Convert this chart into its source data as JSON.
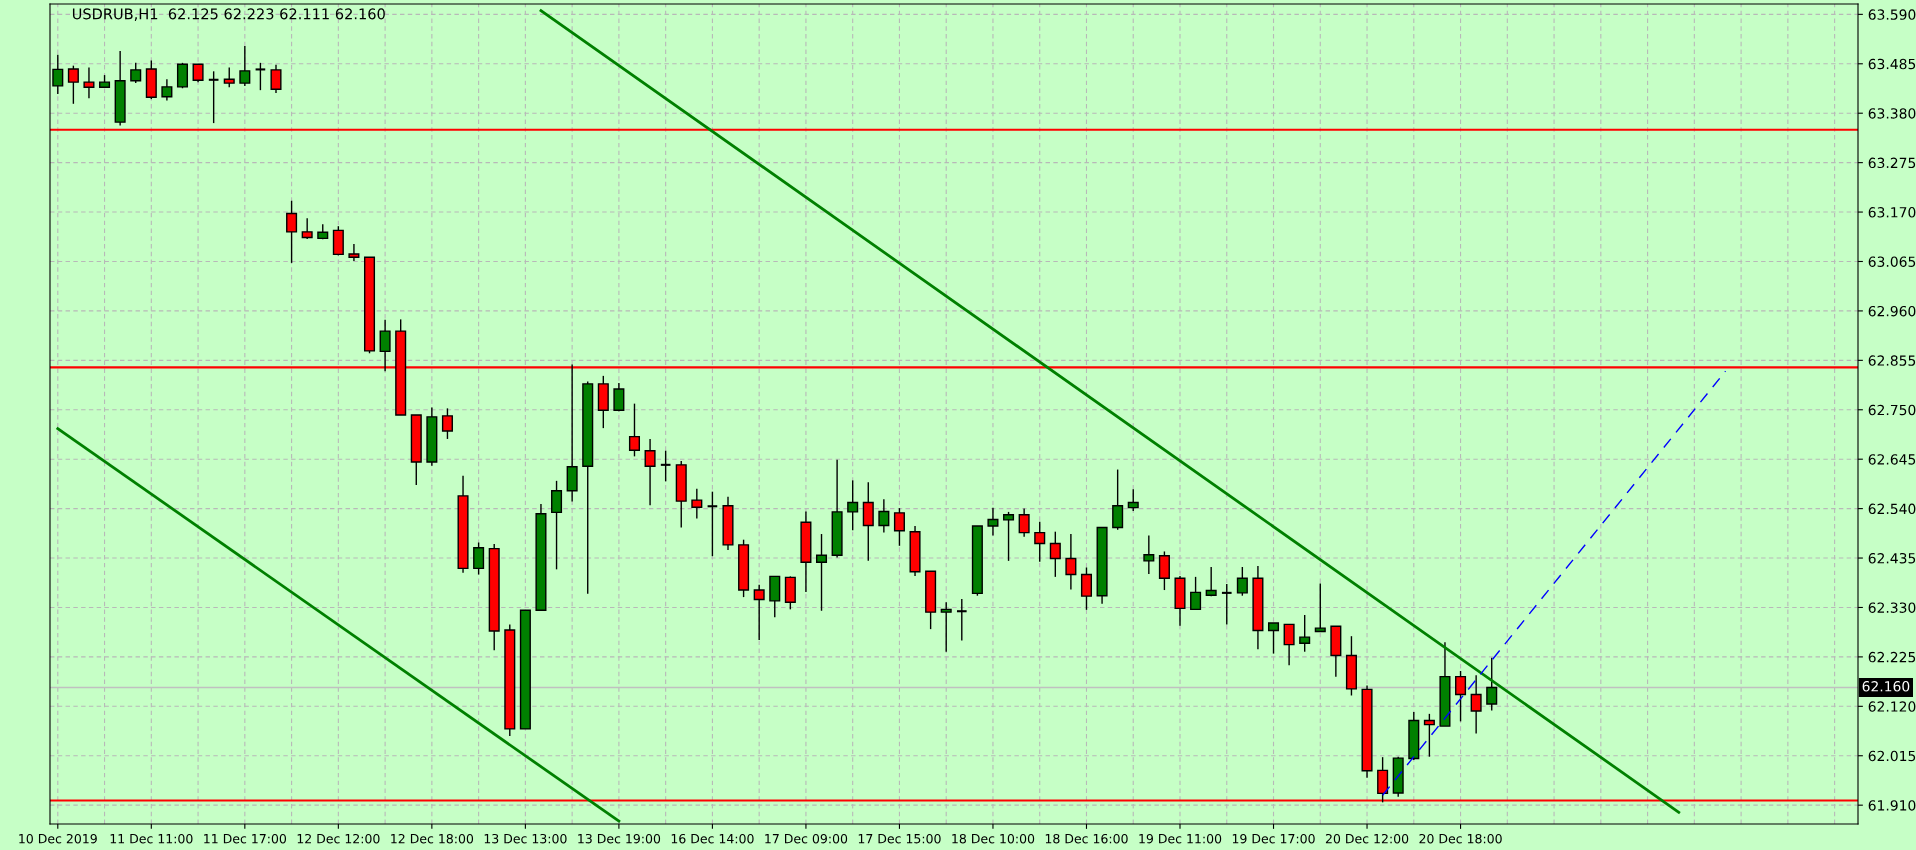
{
  "chart_data": {
    "type": "candlestick",
    "title": "USDRUB,H1  62.125 62.223 62.111 62.160",
    "categories": [
      "10 Dec 2019",
      null,
      null,
      null,
      null,
      null,
      "11 Dec 11:00",
      null,
      null,
      null,
      null,
      null,
      "11 Dec 17:00",
      null,
      null,
      null,
      null,
      null,
      "12 Dec 12:00",
      null,
      null,
      null,
      null,
      null,
      "12 Dec 18:00",
      null,
      null,
      null,
      null,
      null,
      "13 Dec 13:00",
      null,
      null,
      null,
      null,
      null,
      "13 Dec 19:00",
      null,
      null,
      null,
      null,
      null,
      "16 Dec 14:00",
      null,
      null,
      null,
      null,
      null,
      "17 Dec 09:00",
      null,
      null,
      null,
      null,
      null,
      "17 Dec 15:00",
      null,
      null,
      null,
      null,
      null,
      "18 Dec 10:00",
      null,
      null,
      null,
      null,
      null,
      "18 Dec 16:00",
      null,
      null,
      null,
      null,
      null,
      "19 Dec 11:00",
      null,
      null,
      null,
      null,
      null,
      "19 Dec 17:00",
      null,
      null,
      null,
      null,
      null,
      "20 Dec 12:00",
      null,
      null,
      null,
      null,
      null,
      "20 Dec 18:00",
      null,
      null,
      null,
      null,
      null,
      null,
      null,
      null,
      null,
      null,
      null,
      null,
      null,
      null,
      null,
      null,
      null,
      null,
      null,
      null,
      null,
      null,
      null,
      null,
      null
    ],
    "ohlc": [
      [
        63.438,
        63.504,
        63.421,
        63.473
      ],
      [
        63.474,
        63.481,
        63.4,
        63.446
      ],
      [
        63.446,
        63.477,
        63.412,
        63.435
      ],
      [
        63.435,
        63.461,
        63.435,
        63.446
      ],
      [
        63.361,
        63.512,
        63.354,
        63.449
      ],
      [
        63.449,
        63.487,
        63.444,
        63.472
      ],
      [
        63.474,
        63.492,
        63.41,
        63.414
      ],
      [
        63.415,
        63.452,
        63.407,
        63.436
      ],
      [
        63.436,
        63.487,
        63.433,
        63.484
      ],
      [
        63.484,
        63.484,
        63.446,
        63.45
      ],
      [
        63.451,
        63.469,
        63.359,
        63.451
      ],
      [
        63.452,
        63.477,
        63.435,
        63.444
      ],
      [
        63.444,
        63.523,
        63.438,
        63.47
      ],
      [
        63.473,
        63.487,
        63.429,
        63.473
      ],
      [
        63.472,
        63.483,
        63.423,
        63.431
      ],
      [
        63.167,
        63.194,
        63.062,
        63.128
      ],
      [
        63.128,
        63.157,
        63.113,
        63.116
      ],
      [
        63.114,
        63.144,
        63.112,
        63.127
      ],
      [
        63.131,
        63.14,
        63.078,
        63.08
      ],
      [
        63.081,
        63.102,
        63.066,
        63.074
      ],
      [
        63.074,
        63.074,
        62.87,
        62.875
      ],
      [
        62.874,
        62.941,
        62.832,
        62.917
      ],
      [
        62.917,
        62.942,
        62.739,
        62.739
      ],
      [
        62.739,
        62.739,
        62.59,
        62.639
      ],
      [
        62.639,
        62.755,
        62.631,
        62.735
      ],
      [
        62.737,
        62.753,
        62.688,
        62.705
      ],
      [
        62.567,
        62.61,
        62.404,
        62.413
      ],
      [
        62.413,
        62.468,
        62.4,
        62.457
      ],
      [
        62.455,
        62.465,
        62.239,
        62.28
      ],
      [
        62.282,
        62.294,
        62.057,
        62.072
      ],
      [
        62.072,
        62.324,
        62.072,
        62.324
      ],
      [
        62.324,
        62.55,
        62.324,
        62.529
      ],
      [
        62.532,
        62.599,
        62.411,
        62.578
      ],
      [
        62.578,
        62.846,
        62.555,
        62.629
      ],
      [
        62.63,
        62.81,
        62.359,
        62.805
      ],
      [
        62.805,
        62.822,
        62.711,
        62.749
      ],
      [
        62.749,
        62.807,
        62.747,
        62.794
      ],
      [
        62.693,
        62.763,
        62.651,
        62.664
      ],
      [
        62.663,
        62.688,
        62.547,
        62.63
      ],
      [
        62.633,
        62.663,
        62.598,
        62.633
      ],
      [
        62.633,
        62.641,
        62.5,
        62.556
      ],
      [
        62.558,
        62.582,
        62.519,
        62.543
      ],
      [
        62.545,
        62.576,
        62.439,
        62.545
      ],
      [
        62.546,
        62.565,
        62.452,
        62.463
      ],
      [
        62.463,
        62.474,
        62.352,
        62.367
      ],
      [
        62.367,
        62.378,
        62.261,
        62.347
      ],
      [
        62.344,
        62.396,
        62.309,
        62.396
      ],
      [
        62.394,
        62.396,
        62.326,
        62.341
      ],
      [
        62.511,
        62.534,
        62.363,
        62.426
      ],
      [
        62.426,
        62.486,
        62.323,
        62.441
      ],
      [
        62.441,
        62.644,
        62.436,
        62.533
      ],
      [
        62.533,
        62.6,
        62.494,
        62.553
      ],
      [
        62.553,
        62.596,
        62.429,
        62.504
      ],
      [
        62.504,
        62.56,
        62.489,
        62.534
      ],
      [
        62.531,
        62.541,
        62.461,
        62.493
      ],
      [
        62.491,
        62.503,
        62.397,
        62.406
      ],
      [
        62.407,
        62.407,
        62.284,
        62.32
      ],
      [
        62.32,
        62.341,
        62.236,
        62.326
      ],
      [
        62.322,
        62.348,
        62.26,
        62.322
      ],
      [
        62.36,
        62.503,
        62.355,
        62.503
      ],
      [
        62.503,
        62.542,
        62.483,
        62.517
      ],
      [
        62.516,
        62.533,
        62.429,
        62.527
      ],
      [
        62.527,
        62.54,
        62.48,
        62.489
      ],
      [
        62.489,
        62.512,
        62.427,
        62.466
      ],
      [
        62.466,
        62.491,
        62.395,
        62.434
      ],
      [
        62.434,
        62.486,
        62.368,
        62.4
      ],
      [
        62.4,
        62.415,
        62.325,
        62.354
      ],
      [
        62.355,
        62.5,
        62.338,
        62.5
      ],
      [
        62.5,
        62.623,
        62.495,
        62.546
      ],
      [
        62.542,
        62.581,
        62.535,
        62.553
      ],
      [
        62.429,
        62.483,
        62.401,
        62.442
      ],
      [
        62.44,
        62.449,
        62.367,
        62.392
      ],
      [
        62.392,
        62.397,
        62.291,
        62.328
      ],
      [
        62.326,
        62.395,
        62.326,
        62.362
      ],
      [
        62.356,
        62.416,
        62.354,
        62.366
      ],
      [
        62.361,
        62.38,
        62.294,
        62.361
      ],
      [
        62.361,
        62.416,
        62.355,
        62.392
      ],
      [
        62.392,
        62.418,
        62.241,
        62.281
      ],
      [
        62.281,
        62.297,
        62.232,
        62.297
      ],
      [
        62.294,
        62.294,
        62.207,
        62.251
      ],
      [
        62.254,
        62.314,
        62.236,
        62.267
      ],
      [
        62.279,
        62.381,
        62.279,
        62.286
      ],
      [
        62.29,
        62.29,
        62.183,
        62.228
      ],
      [
        62.228,
        62.269,
        62.143,
        62.157
      ],
      [
        62.156,
        62.164,
        61.968,
        61.983
      ],
      [
        61.984,
        62.012,
        61.916,
        61.935
      ],
      [
        61.936,
        62.013,
        61.928,
        62.01
      ],
      [
        62.009,
        62.108,
        62.006,
        62.09
      ],
      [
        62.09,
        62.104,
        62.013,
        62.081
      ],
      [
        62.078,
        62.256,
        62.078,
        62.183
      ],
      [
        62.183,
        62.195,
        62.088,
        62.145
      ],
      [
        62.145,
        62.186,
        62.062,
        62.11
      ],
      [
        62.125,
        62.223,
        62.111,
        62.16
      ],
      null,
      null,
      null,
      null,
      null,
      null,
      null,
      null,
      null,
      null,
      null,
      null,
      null,
      null,
      null,
      null,
      null,
      null,
      null,
      null,
      null,
      null,
      null
    ],
    "colors": [
      "#008000",
      "#ff0000",
      "#ff0000",
      "#008000",
      "#008000",
      "#008000",
      "#ff0000",
      "#008000",
      "#008000",
      "#ff0000",
      "#000000",
      "#ff0000",
      "#008000",
      "#000000",
      "#ff0000",
      "#ff0000",
      "#ff0000",
      "#008000",
      "#ff0000",
      "#ff0000",
      "#ff0000",
      "#008000",
      "#ff0000",
      "#ff0000",
      "#008000",
      "#ff0000",
      "#ff0000",
      "#008000",
      "#ff0000",
      "#ff0000",
      "#008000",
      "#008000",
      "#008000",
      "#008000",
      "#008000",
      "#ff0000",
      "#008000",
      "#ff0000",
      "#ff0000",
      "#000000",
      "#ff0000",
      "#ff0000",
      "#000000",
      "#ff0000",
      "#ff0000",
      "#ff0000",
      "#008000",
      "#ff0000",
      "#ff0000",
      "#008000",
      "#008000",
      "#008000",
      "#ff0000",
      "#008000",
      "#ff0000",
      "#ff0000",
      "#ff0000",
      "#008000",
      "#000000",
      "#008000",
      "#008000",
      "#008000",
      "#ff0000",
      "#ff0000",
      "#ff0000",
      "#ff0000",
      "#ff0000",
      "#008000",
      "#008000",
      "#008000",
      "#008000",
      "#ff0000",
      "#ff0000",
      "#008000",
      "#008000",
      "#000000",
      "#008000",
      "#ff0000",
      "#008000",
      "#ff0000",
      "#008000",
      "#008000",
      "#ff0000",
      "#ff0000",
      "#ff0000",
      "#ff0000",
      "#008000",
      "#008000",
      "#ff0000",
      "#008000",
      "#ff0000",
      "#ff0000",
      "#008000",
      null,
      null,
      null,
      null,
      null,
      null,
      null,
      null,
      null,
      null,
      null,
      null,
      null,
      null,
      null,
      null,
      null,
      null,
      null,
      null,
      null,
      null,
      null
    ],
    "series": [
      {
        "type": "line",
        "color": "#008000",
        "line_style": "solid",
        "values": [
          null,
          null,
          null,
          null,
          null,
          null,
          null,
          null,
          null,
          null,
          null,
          null,
          null,
          null,
          null,
          null,
          null,
          null,
          null,
          null,
          null,
          null,
          null,
          null,
          null,
          null,
          null,
          null,
          null,
          null,
          null,
          63.598,
          null,
          null,
          null,
          null,
          null,
          null,
          null,
          null,
          null,
          null,
          null,
          null,
          null,
          null,
          null,
          null,
          null,
          null,
          null,
          null,
          null,
          null,
          null,
          null,
          null,
          null,
          null,
          null,
          null,
          null,
          null,
          null,
          null,
          null,
          null,
          null,
          null,
          null,
          null,
          null,
          null,
          null,
          null,
          null,
          null,
          null,
          null,
          null,
          null,
          null,
          null,
          null,
          null,
          null,
          null,
          null,
          null,
          null,
          null,
          null,
          null,
          null,
          null,
          null,
          null,
          null,
          null,
          null,
          null,
          null,
          null,
          null,
          61.895,
          null,
          null,
          null,
          null,
          null,
          null,
          null,
          null,
          null,
          null,
          null
        ]
      },
      {
        "type": "line",
        "color": "#008000",
        "line_style": "solid",
        "values": [
          62.71,
          null,
          null,
          null,
          null,
          null,
          null,
          null,
          null,
          null,
          null,
          null,
          null,
          null,
          null,
          null,
          null,
          null,
          null,
          null,
          null,
          null,
          null,
          null,
          null,
          null,
          null,
          null,
          null,
          null,
          null,
          null,
          null,
          null,
          null,
          null,
          61.876,
          null,
          null,
          null,
          null,
          null,
          null,
          null,
          null,
          null,
          null,
          null,
          null,
          null,
          null,
          null,
          null,
          null,
          null,
          null,
          null,
          null,
          null,
          null,
          null,
          null,
          null,
          null,
          null,
          null,
          null,
          null,
          null,
          null,
          null,
          null,
          null,
          null,
          null,
          null,
          null,
          null,
          null,
          null,
          null,
          null,
          null,
          null,
          null,
          null,
          null,
          null,
          null,
          null,
          null,
          null,
          null,
          null,
          null,
          null,
          null,
          null,
          null,
          null,
          null,
          null,
          null,
          null,
          null,
          null,
          null,
          null,
          null,
          null,
          null,
          null,
          null,
          null,
          null,
          null
        ]
      },
      {
        "type": "line",
        "color": "#0000ff",
        "line_style": "dashed",
        "values": [
          null,
          null,
          null,
          null,
          null,
          null,
          null,
          null,
          null,
          null,
          null,
          null,
          null,
          null,
          null,
          null,
          null,
          null,
          null,
          null,
          null,
          null,
          null,
          null,
          null,
          null,
          null,
          null,
          null,
          null,
          null,
          null,
          null,
          null,
          null,
          null,
          null,
          null,
          null,
          null,
          null,
          null,
          null,
          null,
          null,
          null,
          null,
          null,
          null,
          null,
          null,
          null,
          null,
          null,
          null,
          null,
          null,
          null,
          null,
          null,
          null,
          null,
          null,
          null,
          null,
          null,
          null,
          null,
          null,
          null,
          null,
          null,
          null,
          null,
          null,
          null,
          null,
          null,
          null,
          null,
          null,
          null,
          null,
          null,
          null,
          61.931,
          null,
          null,
          null,
          null,
          null,
          null,
          null,
          null,
          null,
          null,
          null,
          null,
          null,
          null,
          null,
          null,
          null,
          null,
          null,
          null,
          null,
          62.832,
          null,
          null,
          null,
          null,
          null,
          null,
          null,
          null
        ]
      }
    ],
    "ylim": [
      61.87,
      63.612
    ],
    "yticks": [
      {
        "value": 63.59,
        "label": "63.590"
      },
      63.485,
      {
        "value": 63.38,
        "label": "63.380"
      },
      63.275,
      {
        "value": 63.17,
        "label": "63.170"
      },
      63.065,
      {
        "value": 62.96,
        "label": "62.960"
      },
      62.855,
      {
        "value": 62.75,
        "label": "62.750"
      },
      62.645,
      {
        "value": 62.54,
        "label": "62.540"
      },
      62.435,
      {
        "value": 62.33,
        "label": "62.330"
      },
      62.225,
      {
        "value": 62.12,
        "label": "62.120"
      },
      62.015,
      {
        "value": 61.91,
        "label": "61.910"
      }
    ],
    "ref_lines": [
      {
        "axis": "y",
        "value": 63.345,
        "color": "#ff0000",
        "line_style": "solid"
      },
      {
        "axis": "y",
        "value": 62.84,
        "color": "#ff0000",
        "line_style": "solid"
      },
      {
        "axis": "y",
        "value": 61.92,
        "color": "#ff0000",
        "line_style": "solid"
      },
      {
        "axis": "y",
        "value": 62.16,
        "label": "62.160",
        "color": "#c0c0c0",
        "line_style": "solid"
      }
    ],
    "grid": true
  }
}
